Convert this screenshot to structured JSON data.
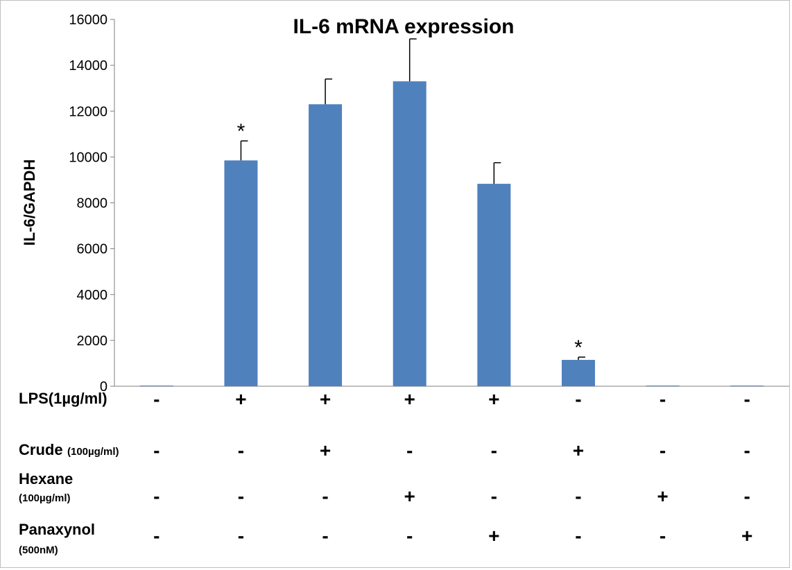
{
  "chart_data": {
    "type": "bar",
    "title": "IL-6 mRNA expression",
    "xlabel": "",
    "ylabel": "IL-6/GAPDH",
    "ylim": [
      0,
      16000
    ],
    "yticks": [
      "0",
      "2000",
      "4000",
      "6000",
      "8000",
      "10000",
      "12000",
      "14000",
      "16000"
    ],
    "grid": false,
    "legend": "none",
    "bar_color": "#4f81bd",
    "values": [
      0,
      9850,
      12300,
      13300,
      8830,
      1150,
      0,
      0
    ],
    "errors": [
      0,
      850,
      1100,
      1850,
      920,
      120,
      0,
      0
    ],
    "annotations": [
      "",
      "*",
      "",
      "",
      "",
      "*",
      "",
      ""
    ]
  },
  "treatments": [
    {
      "label": "LPS(1µg/ml)",
      "sublabel": "",
      "signs": [
        "-",
        "+",
        "+",
        "+",
        "+",
        "-",
        "-",
        "-"
      ]
    },
    {
      "label": "Crude",
      "sublabel": "(100µg/ml)",
      "signs": [
        "-",
        "-",
        "+",
        "-",
        "-",
        "+",
        "-",
        "-"
      ]
    },
    {
      "label": "Hexane",
      "sublabel": "(100µg/ml)",
      "signs": [
        "-",
        "-",
        "-",
        "+",
        "-",
        "-",
        "+",
        "-"
      ]
    },
    {
      "label": "Panaxynol",
      "sublabel": "(500nM)",
      "signs": [
        "-",
        "-",
        "-",
        "-",
        "+",
        "-",
        "-",
        "+"
      ]
    }
  ]
}
